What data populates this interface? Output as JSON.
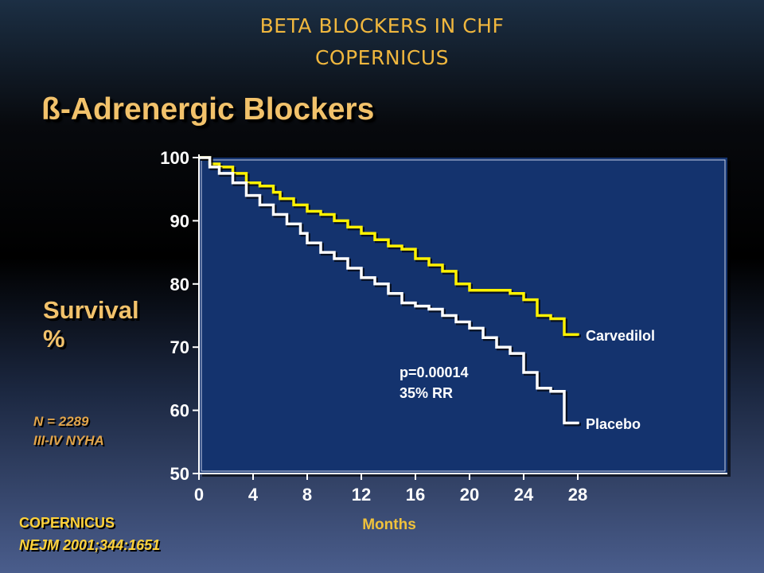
{
  "slide": {
    "title_line1": "BETA BLOCKERS IN CHF",
    "title_line2": "COPERNICUS",
    "subtitle": "ß-Adrenergic Blockers",
    "y_label_line1": "Survival",
    "y_label_line2": "%",
    "note_line1": "N = 2289",
    "note_line2": "III-IV NYHA",
    "source_line1": "COPERNICUS",
    "source_line2": "NEJM 2001;344:1651"
  },
  "colors": {
    "plot_bg": "#14336e",
    "carvedilol": "#fff200",
    "placebo": "#ffffff",
    "axis": "#ffffff"
  },
  "chart_data": {
    "type": "line",
    "xlabel": "Months",
    "ylabel": "Survival %",
    "xlim": [
      0,
      28
    ],
    "ylim": [
      50,
      100
    ],
    "x_ticks": [
      "0",
      "4",
      "8",
      "12",
      "16",
      "20",
      "24",
      "28"
    ],
    "y_ticks": [
      "50",
      "60",
      "70",
      "80",
      "90",
      "100"
    ],
    "annotation_line1": "p=0.00014",
    "annotation_line2": "35% RR",
    "series": [
      {
        "name": "Carvedilol",
        "color": "#fff200",
        "points": [
          [
            0,
            100
          ],
          [
            0.8,
            99
          ],
          [
            1.5,
            98.5
          ],
          [
            2.5,
            97.5
          ],
          [
            3.5,
            96
          ],
          [
            4.5,
            95.5
          ],
          [
            5.5,
            94.5
          ],
          [
            6,
            93.5
          ],
          [
            7,
            92.5
          ],
          [
            8,
            91.5
          ],
          [
            9,
            91
          ],
          [
            10,
            90
          ],
          [
            11,
            89
          ],
          [
            12,
            88
          ],
          [
            13,
            87
          ],
          [
            14,
            86
          ],
          [
            15,
            85.5
          ],
          [
            16,
            84
          ],
          [
            17,
            83
          ],
          [
            18,
            82
          ],
          [
            19,
            80
          ],
          [
            20,
            79
          ],
          [
            21,
            79
          ],
          [
            22,
            79
          ],
          [
            23,
            78.5
          ],
          [
            24,
            77.5
          ],
          [
            25,
            75
          ],
          [
            26,
            74.5
          ],
          [
            27,
            72
          ],
          [
            28,
            71.8
          ]
        ]
      },
      {
        "name": "Placebo",
        "color": "#ffffff",
        "points": [
          [
            0,
            100
          ],
          [
            0.8,
            98.5
          ],
          [
            1.5,
            97.5
          ],
          [
            2.5,
            96
          ],
          [
            3.5,
            94
          ],
          [
            4.5,
            92.5
          ],
          [
            5.5,
            91
          ],
          [
            6.5,
            89.5
          ],
          [
            7.5,
            88
          ],
          [
            8,
            86.5
          ],
          [
            9,
            85
          ],
          [
            10,
            84
          ],
          [
            11,
            82.5
          ],
          [
            12,
            81
          ],
          [
            13,
            80
          ],
          [
            14,
            78.5
          ],
          [
            15,
            77
          ],
          [
            16,
            76.5
          ],
          [
            17,
            76
          ],
          [
            18,
            75
          ],
          [
            19,
            74
          ],
          [
            20,
            73
          ],
          [
            21,
            71.5
          ],
          [
            22,
            70
          ],
          [
            23,
            69
          ],
          [
            24,
            66
          ],
          [
            25,
            63.5
          ],
          [
            26,
            63
          ],
          [
            27,
            58
          ],
          [
            28,
            57.8
          ]
        ]
      }
    ]
  }
}
